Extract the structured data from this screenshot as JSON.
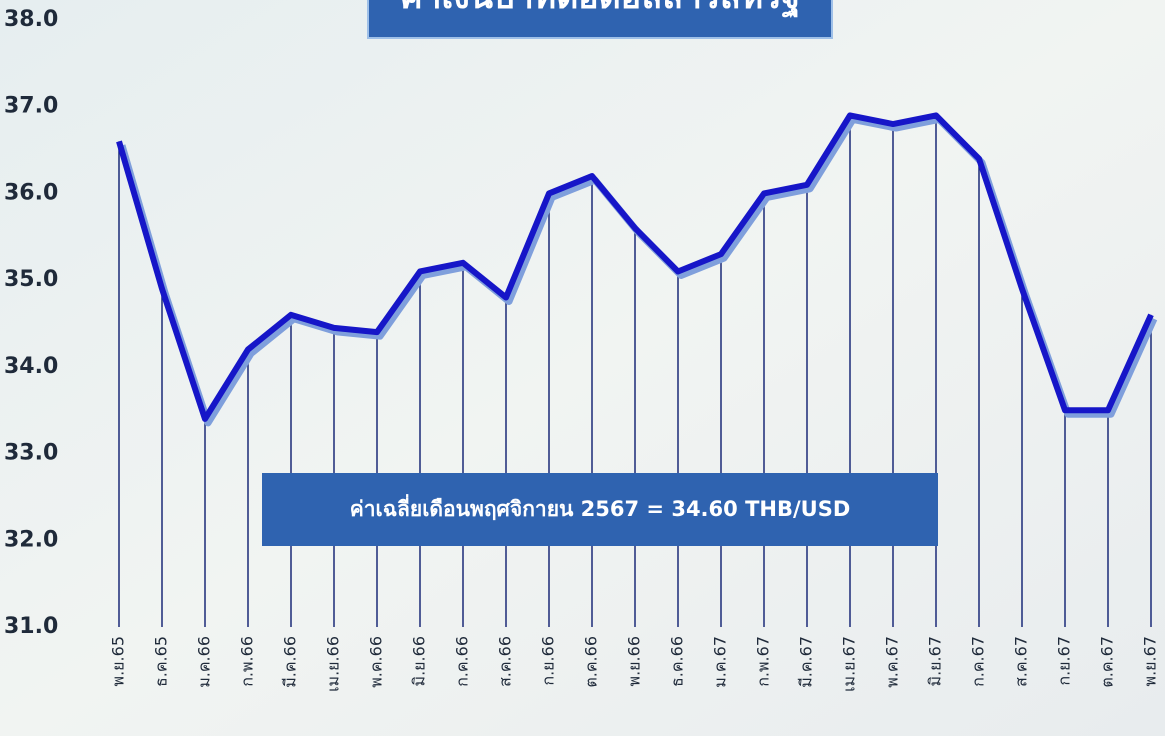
{
  "chart_data": {
    "type": "line",
    "title": "ค่าเงินบาทต่อดอลลาร์สหรัฐ",
    "annotation": "ค่าเฉลี่ยเดือนพฤศจิกายน 2567 = 34.60 THB/USD",
    "categories": [
      "พ.ย.65",
      "ธ.ค.65",
      "ม.ค.66",
      "ก.พ.66",
      "มี.ค.66",
      "เม.ย.66",
      "พ.ค.66",
      "มิ.ย.66",
      "ก.ค.66",
      "ส.ค.66",
      "ก.ย.66",
      "ต.ค.66",
      "พ.ย.66",
      "ธ.ค.66",
      "ม.ค.67",
      "ก.พ.67",
      "มี.ค.67",
      "เม.ย.67",
      "พ.ค.67",
      "มิ.ย.67",
      "ก.ค.67",
      "ส.ค.67",
      "ก.ย.67",
      "ต.ค.67",
      "พ.ย.67"
    ],
    "values": [
      36.6,
      34.9,
      33.4,
      34.2,
      34.6,
      34.45,
      34.4,
      35.1,
      35.2,
      34.8,
      36.0,
      36.2,
      35.6,
      35.1,
      35.3,
      36.0,
      36.1,
      36.9,
      36.8,
      36.9,
      36.4,
      34.9,
      33.5,
      33.5,
      34.6
    ],
    "color": "#1616c8",
    "ylim": [
      31,
      38
    ],
    "yticks": [
      {
        "value": 31,
        "label": "31.0"
      },
      {
        "value": 32,
        "label": "32.0"
      },
      {
        "value": 33,
        "label": "33.0"
      },
      {
        "value": 34,
        "label": "34.0"
      },
      {
        "value": 35,
        "label": "35.0"
      },
      {
        "value": 36,
        "label": "36.0"
      },
      {
        "value": 37,
        "label": "37.0"
      },
      {
        "value": 38,
        "label": "38.0"
      }
    ],
    "drop_lines": true
  }
}
